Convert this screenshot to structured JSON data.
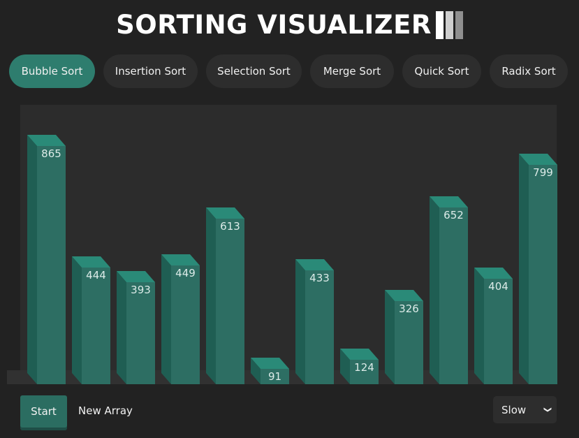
{
  "app": {
    "title": "SORTING VISUALIZER"
  },
  "algorithms": [
    {
      "label": "Bubble Sort",
      "active": true
    },
    {
      "label": "Insertion Sort",
      "active": false
    },
    {
      "label": "Selection Sort",
      "active": false
    },
    {
      "label": "Merge Sort",
      "active": false
    },
    {
      "label": "Quick Sort",
      "active": false
    },
    {
      "label": "Radix Sort",
      "active": false
    }
  ],
  "array": [
    865,
    444,
    393,
    449,
    613,
    91,
    433,
    124,
    326,
    652,
    404,
    799
  ],
  "controls": {
    "start_label": "Start",
    "new_array_label": "New Array",
    "speed_value": "Slow"
  },
  "colors": {
    "background": "#222222",
    "accent": "#2e7d6e",
    "bar_front": "#2d6e63",
    "bar_top": "#2a8a78",
    "bar_side": "#1f5e53"
  }
}
